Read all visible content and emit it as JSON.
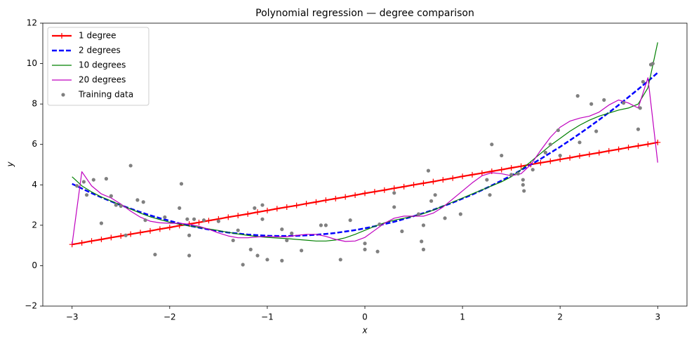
{
  "chart_data": {
    "type": "line",
    "title": "Polynomial regression — degree comparison",
    "x_label": "x",
    "y_label": "y",
    "xlim": [
      -3.3,
      3.3
    ],
    "ylim": [
      -2,
      12
    ],
    "xticks": [
      {
        "value": -3,
        "label": "−3"
      },
      {
        "value": -2,
        "label": "−2"
      },
      {
        "value": -1,
        "label": "−1"
      },
      0,
      1,
      2,
      3
    ],
    "yticks": [
      {
        "value": -2,
        "label": "−2"
      },
      0,
      2,
      4,
      6,
      8,
      10,
      12
    ],
    "grid": false,
    "legend": "upper left",
    "x": [
      -3.0,
      -2.9,
      -2.8,
      -2.7,
      -2.6,
      -2.5,
      -2.4,
      -2.3,
      -2.2,
      -2.1,
      -2.0,
      -1.9,
      -1.8,
      -1.7,
      -1.6,
      -1.5,
      -1.4,
      -1.3,
      -1.2,
      -1.1,
      -1.0,
      -0.9,
      -0.8,
      -0.7,
      -0.6,
      -0.5,
      -0.4,
      -0.3,
      -0.2,
      -0.1,
      0.0,
      0.1,
      0.2,
      0.3,
      0.4,
      0.5,
      0.6,
      0.7,
      0.8,
      0.9,
      1.0,
      1.1,
      1.2,
      1.3,
      1.4,
      1.5,
      1.6,
      1.7,
      1.8,
      1.9,
      2.0,
      2.1,
      2.2,
      2.3,
      2.4,
      2.5,
      2.6,
      2.7,
      2.8,
      2.9,
      3.0
    ],
    "series": [
      {
        "name": "1 degree",
        "color": "#ff0000",
        "mode": "line",
        "marker": "+",
        "dash": "solid",
        "width": 2.2,
        "values": [
          1.05,
          1.13,
          1.22,
          1.3,
          1.39,
          1.47,
          1.56,
          1.64,
          1.72,
          1.81,
          1.89,
          1.98,
          2.06,
          2.14,
          2.23,
          2.31,
          2.4,
          2.48,
          2.56,
          2.65,
          2.73,
          2.82,
          2.9,
          2.98,
          3.07,
          3.15,
          3.24,
          3.32,
          3.4,
          3.49,
          3.58,
          3.66,
          3.74,
          3.83,
          3.91,
          4.0,
          4.08,
          4.16,
          4.25,
          4.33,
          4.42,
          4.5,
          4.58,
          4.67,
          4.75,
          4.84,
          4.92,
          5.01,
          5.09,
          5.17,
          5.26,
          5.34,
          5.43,
          5.51,
          5.59,
          5.68,
          5.76,
          5.85,
          5.93,
          6.01,
          6.1
        ]
      },
      {
        "name": "2 degrees",
        "color": "#0000ff",
        "mode": "line",
        "dash": "dashed",
        "width": 2.5,
        "values": [
          4.05,
          3.82,
          3.59,
          3.38,
          3.18,
          2.99,
          2.82,
          2.65,
          2.49,
          2.35,
          2.22,
          2.09,
          1.98,
          1.88,
          1.79,
          1.71,
          1.64,
          1.59,
          1.54,
          1.51,
          1.48,
          1.47,
          1.47,
          1.48,
          1.5,
          1.53,
          1.57,
          1.62,
          1.69,
          1.76,
          1.85,
          1.95,
          2.06,
          2.17,
          2.31,
          2.45,
          2.6,
          2.76,
          2.94,
          3.12,
          3.32,
          3.52,
          3.74,
          3.97,
          4.21,
          4.46,
          4.73,
          5.0,
          5.28,
          5.58,
          5.88,
          6.2,
          6.53,
          6.87,
          7.22,
          7.58,
          7.95,
          8.34,
          8.73,
          9.13,
          9.55
        ]
      },
      {
        "name": "10 degrees",
        "color": "#008000",
        "mode": "line",
        "dash": "solid",
        "width": 1.2,
        "values": [
          4.4,
          3.95,
          3.65,
          3.4,
          3.2,
          3.0,
          2.8,
          2.6,
          2.42,
          2.28,
          2.15,
          2.05,
          1.97,
          1.9,
          1.82,
          1.74,
          1.65,
          1.57,
          1.5,
          1.44,
          1.4,
          1.37,
          1.34,
          1.3,
          1.26,
          1.22,
          1.22,
          1.27,
          1.38,
          1.55,
          1.75,
          1.95,
          2.12,
          2.25,
          2.35,
          2.45,
          2.58,
          2.75,
          2.95,
          3.15,
          3.35,
          3.55,
          3.75,
          3.95,
          4.15,
          4.4,
          4.75,
          5.15,
          5.55,
          5.95,
          6.3,
          6.65,
          6.95,
          7.2,
          7.4,
          7.55,
          7.7,
          7.8,
          8.0,
          8.8,
          11.05
        ]
      },
      {
        "name": "20 degrees",
        "color": "#bf00bf",
        "mode": "line",
        "dash": "solid",
        "width": 1.2,
        "values": [
          1.05,
          4.65,
          3.95,
          3.55,
          3.35,
          3.05,
          2.7,
          2.4,
          2.2,
          2.12,
          2.1,
          2.1,
          2.05,
          1.95,
          1.8,
          1.62,
          1.47,
          1.38,
          1.38,
          1.42,
          1.45,
          1.43,
          1.43,
          1.5,
          1.55,
          1.55,
          1.45,
          1.3,
          1.2,
          1.22,
          1.4,
          1.75,
          2.1,
          2.35,
          2.45,
          2.45,
          2.45,
          2.6,
          2.9,
          3.3,
          3.7,
          4.1,
          4.45,
          4.6,
          4.55,
          4.45,
          4.55,
          5.0,
          5.7,
          6.35,
          6.85,
          7.15,
          7.3,
          7.4,
          7.6,
          7.95,
          8.2,
          8.05,
          7.8,
          9.3,
          5.1
        ]
      },
      {
        "name": "Training data",
        "color": "#808080",
        "mode": "markers",
        "marker": "o",
        "x": [
          -2.95,
          -2.88,
          -2.85,
          -2.78,
          -2.7,
          -2.65,
          -2.6,
          -2.55,
          -2.5,
          -2.45,
          -2.4,
          -2.33,
          -2.27,
          -2.25,
          -2.15,
          -2.05,
          -1.9,
          -1.88,
          -1.82,
          -1.8,
          -1.8,
          -1.75,
          -1.65,
          -1.5,
          -1.35,
          -1.3,
          -1.25,
          -1.17,
          -1.13,
          -1.1,
          -1.05,
          -1.05,
          -1.0,
          -0.85,
          -0.85,
          -0.8,
          -0.75,
          -0.65,
          -0.45,
          -0.4,
          -0.25,
          -0.15,
          0.0,
          0.0,
          0.13,
          0.15,
          0.3,
          0.3,
          0.38,
          0.55,
          0.58,
          0.6,
          0.6,
          0.65,
          0.68,
          0.72,
          0.82,
          0.98,
          1.25,
          1.28,
          1.3,
          1.4,
          1.5,
          1.57,
          1.62,
          1.62,
          1.63,
          1.72,
          1.85,
          1.9,
          1.98,
          2.0,
          2.18,
          2.2,
          2.32,
          2.37,
          2.45,
          2.65,
          2.8,
          2.82,
          2.85,
          2.93,
          2.95
        ],
        "values": [
          3.95,
          4.15,
          3.5,
          4.25,
          2.1,
          4.3,
          3.45,
          3.0,
          2.95,
          1.5,
          4.95,
          3.25,
          3.15,
          2.25,
          0.55,
          2.4,
          2.85,
          4.05,
          2.3,
          1.5,
          0.5,
          2.3,
          2.25,
          2.2,
          1.25,
          1.75,
          0.05,
          0.8,
          2.85,
          0.5,
          3.0,
          2.3,
          0.3,
          0.25,
          1.8,
          1.25,
          1.6,
          0.75,
          2.0,
          2.0,
          0.3,
          2.25,
          1.1,
          0.8,
          0.7,
          2.05,
          3.6,
          2.9,
          1.7,
          2.55,
          1.2,
          0.8,
          2.0,
          4.7,
          3.2,
          3.5,
          2.35,
          2.55,
          4.25,
          3.5,
          6.0,
          5.45,
          4.5,
          4.55,
          4.25,
          4.0,
          3.7,
          4.75,
          5.6,
          6.0,
          6.7,
          5.45,
          8.4,
          6.1,
          8.0,
          6.65,
          8.2,
          8.05,
          6.75,
          7.8,
          9.1,
          9.95,
          10.0
        ]
      }
    ]
  }
}
